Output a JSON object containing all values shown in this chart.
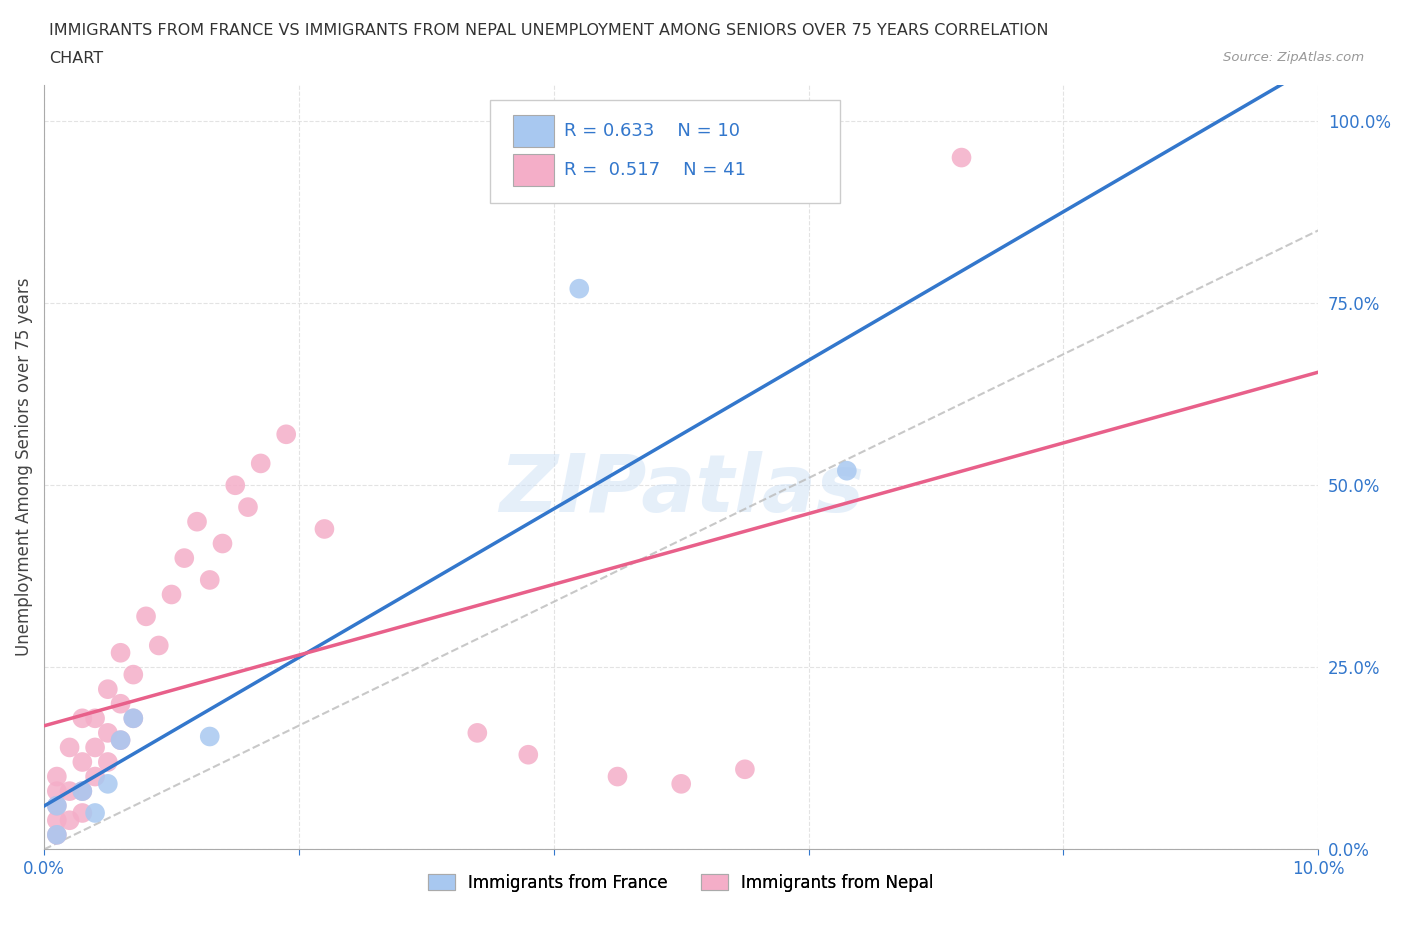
{
  "title_line1": "IMMIGRANTS FROM FRANCE VS IMMIGRANTS FROM NEPAL UNEMPLOYMENT AMONG SENIORS OVER 75 YEARS CORRELATION",
  "title_line2": "CHART",
  "source": "Source: ZipAtlas.com",
  "ylabel": "Unemployment Among Seniors over 75 years",
  "france_R": 0.633,
  "france_N": 10,
  "nepal_R": 0.517,
  "nepal_N": 41,
  "france_color": "#a8c8f0",
  "nepal_color": "#f4aec8",
  "france_line_color": "#3377cc",
  "nepal_line_color": "#e8608a",
  "dashed_line_color": "#bbbbbb",
  "watermark": "ZIPatlas",
  "xlim": [
    0.0,
    0.1
  ],
  "ylim": [
    0.0,
    1.05
  ],
  "yticks": [
    0.0,
    0.25,
    0.5,
    0.75,
    1.0
  ],
  "ytick_labels": [
    "0.0%",
    "25.0%",
    "50.0%",
    "75.0%",
    "100.0%"
  ],
  "xtick_positions": [
    0.0,
    0.1
  ],
  "xtick_labels": [
    "0.0%",
    "10.0%"
  ],
  "france_x": [
    0.001,
    0.001,
    0.003,
    0.004,
    0.005,
    0.006,
    0.007,
    0.013,
    0.042,
    0.063
  ],
  "france_y": [
    0.02,
    0.06,
    0.08,
    0.05,
    0.09,
    0.15,
    0.18,
    0.155,
    0.77,
    0.52
  ],
  "nepal_x": [
    0.001,
    0.001,
    0.001,
    0.001,
    0.001,
    0.002,
    0.002,
    0.002,
    0.003,
    0.003,
    0.003,
    0.003,
    0.004,
    0.004,
    0.004,
    0.005,
    0.005,
    0.005,
    0.006,
    0.006,
    0.006,
    0.007,
    0.007,
    0.008,
    0.009,
    0.01,
    0.011,
    0.012,
    0.013,
    0.014,
    0.015,
    0.016,
    0.017,
    0.019,
    0.022,
    0.034,
    0.038,
    0.045,
    0.05,
    0.055,
    0.072
  ],
  "nepal_y": [
    0.02,
    0.04,
    0.06,
    0.08,
    0.1,
    0.04,
    0.08,
    0.14,
    0.05,
    0.08,
    0.12,
    0.18,
    0.1,
    0.14,
    0.18,
    0.12,
    0.16,
    0.22,
    0.15,
    0.2,
    0.27,
    0.18,
    0.24,
    0.32,
    0.28,
    0.35,
    0.4,
    0.45,
    0.37,
    0.42,
    0.5,
    0.47,
    0.53,
    0.57,
    0.44,
    0.16,
    0.13,
    0.1,
    0.09,
    0.11,
    0.95
  ],
  "background_color": "#ffffff",
  "grid_color": "#e0e0e0",
  "grid_style": "--"
}
